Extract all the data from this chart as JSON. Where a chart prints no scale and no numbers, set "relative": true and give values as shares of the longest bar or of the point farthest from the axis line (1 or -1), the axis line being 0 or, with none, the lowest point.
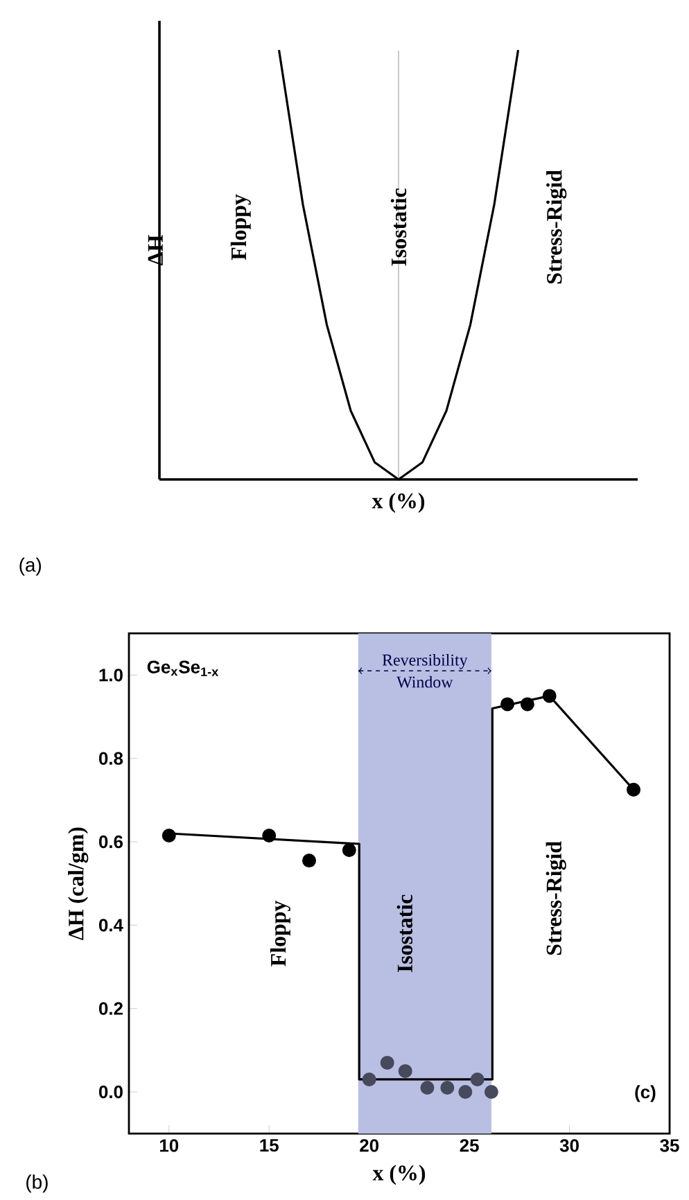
{
  "chart_data": [
    {
      "type": "line",
      "relative": true,
      "marker": "none",
      "color": "#000000",
      "xlabel": "x (%)",
      "ylabel": "ΔH",
      "categories": [
        null,
        null,
        null,
        null,
        null,
        null,
        null,
        null,
        null,
        null,
        null,
        null,
        null,
        null,
        null,
        null,
        null,
        null,
        null,
        null,
        null
      ],
      "values": [
        null,
        null,
        null,
        null,
        null,
        1,
        0.64,
        0.36,
        0.16,
        0.04,
        0,
        0.04,
        0.16,
        0.36,
        0.64,
        1,
        null,
        null,
        null,
        null,
        null
      ],
      "annotations": [
        "Floppy",
        "Isostatic",
        "Stress-Rigid",
        "(a)"
      ]
    },
    {
      "type": "scatter",
      "xlabel": "x (%)",
      "ylabel": "ΔH (cal/gm)",
      "xlim": [
        8,
        35
      ],
      "ylim": [
        -0.1,
        1.1
      ],
      "xticks": [
        10,
        15,
        20,
        25,
        30,
        35
      ],
      "yticks": [
        {
          "value": 0,
          "label": "0.0"
        },
        {
          "value": 0.2,
          "label": "0.2"
        },
        {
          "value": 0.4,
          "label": "0.4"
        },
        {
          "value": 0.6,
          "label": "0.6"
        },
        {
          "value": 0.8,
          "label": "0.8"
        },
        {
          "value": 1,
          "label": "1.0"
        }
      ],
      "series": [
        {
          "type": "scatter",
          "marker": "circle",
          "color": "#000000",
          "x": [
            10,
            15,
            17,
            19,
            26.9,
            27.9,
            29,
            33.2
          ],
          "values": [
            0.615,
            0.615,
            0.555,
            0.58,
            0.93,
            0.93,
            0.95,
            0.725
          ]
        },
        {
          "type": "scatter",
          "marker": "circle",
          "color": "#474a5c",
          "x": [
            20,
            20.9,
            21.8,
            22.9,
            23.9,
            24.8,
            25.4,
            26.1
          ],
          "values": [
            0.03,
            0.07,
            0.05,
            0.01,
            0.01,
            0,
            0.03,
            0
          ]
        },
        {
          "type": "line",
          "marker": "none",
          "color": "#000000",
          "x": [
            10,
            19.5,
            19.5,
            26.15,
            26.15,
            29,
            33.2
          ],
          "values": [
            0.62,
            0.595,
            0.03,
            0.03,
            0.92,
            0.95,
            0.725
          ]
        }
      ],
      "bands": [
        {
          "axis": "x",
          "from": 19.45,
          "to": 26.1,
          "label": "Reversibility Window",
          "color": "#b9bfe3"
        }
      ],
      "annotations": [
        "Ge$_{x}$Se$_{1-x}$",
        "Floppy",
        "Isostatic",
        "Stress-Rigid",
        "(c)",
        "(b)"
      ]
    }
  ]
}
